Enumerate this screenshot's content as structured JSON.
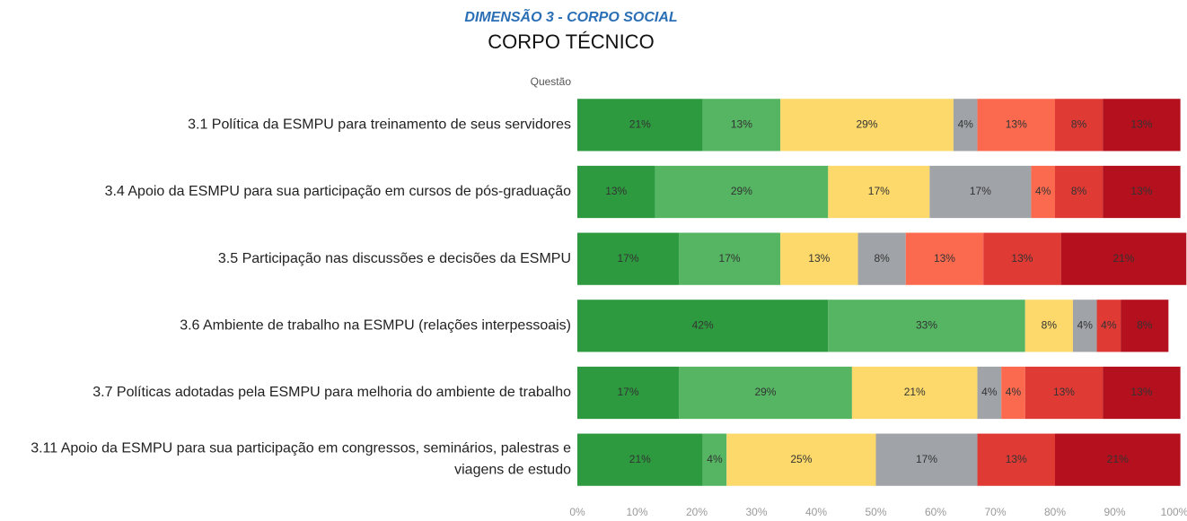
{
  "chart_data": {
    "type": "stacked_barh",
    "title": "DIMENSÃO 3 - CORPO SOCIAL",
    "subtitle": "CORPO TÉCNICO",
    "y_label": "Questão",
    "categories": [
      "3.1 Política da ESMPU para treinamento de seus servidores",
      "3.4 Apoio da ESMPU para sua participação em cursos de pós-graduação",
      "3.5 Participação nas discussões e decisões da ESMPU",
      "3.6 Ambiente de trabalho na ESMPU (relações interpessoais)",
      "3.7 Políticas adotadas pela ESMPU para melhoria do ambiente de trabalho",
      "3.11 Apoio da ESMPU para sua participação em congressos, seminários, palestras e\nviagens de estudo"
    ],
    "series": [
      {
        "color": "#2e9a3f",
        "values": [
          21,
          13,
          17,
          42,
          17,
          21
        ],
        "value_labels": [
          "21%",
          "13%",
          "17%",
          "42%",
          "17%",
          "21%"
        ]
      },
      {
        "color": "#55b562",
        "values": [
          13,
          29,
          17,
          33,
          29,
          4
        ],
        "value_labels": [
          "13%",
          "29%",
          "17%",
          "33%",
          "29%",
          "4%"
        ]
      },
      {
        "color": "#fcd96a",
        "values": [
          29,
          17,
          13,
          8,
          21,
          25
        ],
        "value_labels": [
          "29%",
          "17%",
          "13%",
          "8%",
          "21%",
          "25%"
        ]
      },
      {
        "color": "#a0a3a8",
        "values": [
          4,
          17,
          8,
          4,
          4,
          17
        ],
        "value_labels": [
          "4%",
          "17%",
          "8%",
          "4%",
          "4%",
          "17%"
        ]
      },
      {
        "color": "#fb6a4f",
        "values": [
          13,
          4,
          13,
          null,
          4,
          null
        ],
        "value_labels": [
          "13%",
          "4%",
          "13%",
          null,
          "4%",
          null
        ]
      },
      {
        "color": "#e03a35",
        "values": [
          8,
          8,
          13,
          4,
          13,
          13
        ],
        "value_labels": [
          "8%",
          "8%",
          "13%",
          "4%",
          "13%",
          "13%"
        ]
      },
      {
        "color": "#b5101d",
        "values": [
          13,
          13,
          21,
          8,
          13,
          21
        ],
        "value_labels": [
          "13%",
          "13%",
          "21%",
          "8%",
          "13%",
          "21%"
        ]
      }
    ],
    "xlim": [
      0,
      100
    ],
    "xticks": [
      {
        "value": 0,
        "label": "0%"
      },
      {
        "value": 10,
        "label": "10%"
      },
      {
        "value": 20,
        "label": "20%"
      },
      {
        "value": 30,
        "label": "30%"
      },
      {
        "value": 40,
        "label": "40%"
      },
      {
        "value": 50,
        "label": "50%"
      },
      {
        "value": 60,
        "label": "60%"
      },
      {
        "value": 70,
        "label": "70%"
      },
      {
        "value": 80,
        "label": "80%"
      },
      {
        "value": 90,
        "label": "90%"
      },
      {
        "value": 100,
        "label": "100%"
      }
    ]
  }
}
